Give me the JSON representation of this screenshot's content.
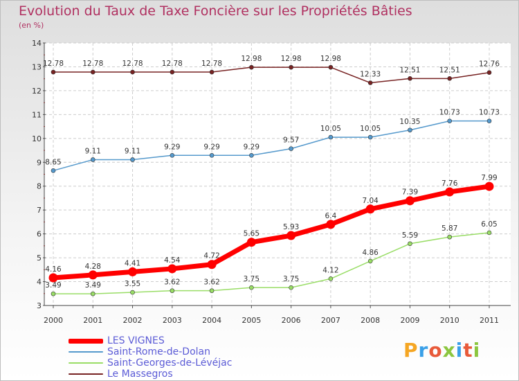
{
  "title": "Evolution du Taux de Taxe Foncière sur les Propriétés Bâties",
  "subtitle": "(en %)",
  "logo_text": "Proxiti",
  "chart_data": {
    "type": "line",
    "x": [
      "2000",
      "2001",
      "2002",
      "2003",
      "2004",
      "2005",
      "2006",
      "2007",
      "2008",
      "2009",
      "2010",
      "2011"
    ],
    "ylim": [
      3,
      14
    ],
    "yticks": [
      3,
      4,
      5,
      6,
      7,
      8,
      9,
      10,
      11,
      12,
      13,
      14
    ],
    "grid": true,
    "legend_position": "bottom-left",
    "series": [
      {
        "name": "LES VIGNES",
        "color": "#ff0000",
        "values": [
          4.16,
          4.28,
          4.41,
          4.54,
          4.72,
          5.65,
          5.93,
          6.4,
          7.04,
          7.39,
          7.76,
          7.99
        ],
        "labels": [
          "4.16",
          "4.28",
          "4.41",
          "4.54",
          "4.72",
          "5.65",
          "5.93",
          "6.4",
          "7.04",
          "7.39",
          "7.76",
          "7.99"
        ]
      },
      {
        "name": "Saint-Rome-de-Dolan",
        "color": "#5599cc",
        "values": [
          8.65,
          9.11,
          9.11,
          9.29,
          9.29,
          9.29,
          9.57,
          10.05,
          10.05,
          10.35,
          10.73,
          10.73
        ],
        "labels": [
          "8.65",
          "9.11",
          "9.11",
          "9.29",
          "9.29",
          "9.29",
          "9.57",
          "10.05",
          "10.05",
          "10.35",
          "10.73",
          "10.73"
        ]
      },
      {
        "name": "Saint-Georges-de-Lévéjac",
        "color": "#99dd66",
        "values": [
          3.49,
          3.49,
          3.55,
          3.62,
          3.62,
          3.75,
          3.75,
          4.12,
          4.86,
          5.59,
          5.87,
          6.05
        ],
        "labels": [
          "3.49",
          "3.49",
          "3.55",
          "3.62",
          "3.62",
          "3.75",
          "3.75",
          "4.12",
          "4.86",
          "5.59",
          "5.87",
          "6.05"
        ]
      },
      {
        "name": "Le Massegros",
        "color": "#772222",
        "values": [
          12.78,
          12.78,
          12.78,
          12.78,
          12.78,
          12.98,
          12.98,
          12.98,
          12.33,
          12.51,
          12.51,
          12.76
        ],
        "labels": [
          "12.78",
          "12.78",
          "12.78",
          "12.78",
          "12.78",
          "12.98",
          "12.98",
          "12.98",
          "12.33",
          "12.51",
          "12.51",
          "12.76"
        ]
      }
    ]
  }
}
